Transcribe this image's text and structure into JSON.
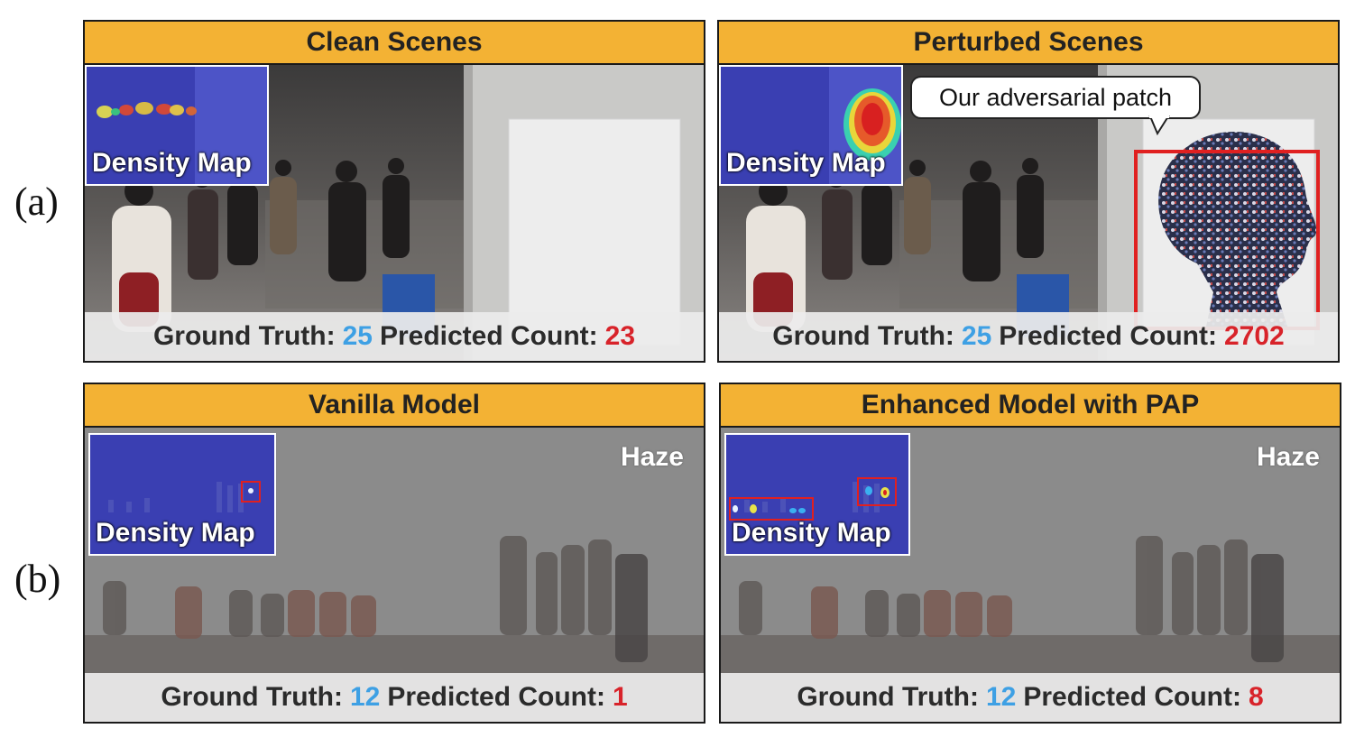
{
  "row_labels": {
    "a": "(a)",
    "b": "(b)"
  },
  "panels": {
    "clean": {
      "title": "Clean Scenes",
      "density_label": "Density Map",
      "gt_label": "Ground Truth:",
      "gt_value": "25",
      "pred_label": "Predicted Count:",
      "pred_value": "23"
    },
    "perturbed": {
      "title": "Perturbed Scenes",
      "density_label": "Density Map",
      "callout": "Our adversarial patch",
      "gt_label": "Ground Truth:",
      "gt_value": "25",
      "pred_label": "Predicted Count:",
      "pred_value": "2702"
    },
    "vanilla": {
      "title": "Vanilla Model",
      "density_label": "Density Map",
      "haze": "Haze",
      "gt_label": "Ground Truth:",
      "gt_value": "12",
      "pred_label": "Predicted Count:",
      "pred_value": "1"
    },
    "enhanced": {
      "title": "Enhanced Model with PAP",
      "density_label": "Density Map",
      "haze": "Haze",
      "gt_label": "Ground Truth:",
      "gt_value": "12",
      "pred_label": "Predicted Count:",
      "pred_value": "8"
    }
  },
  "colors": {
    "header": "#f3b234",
    "gt": "#3ea0e4",
    "pred": "#d8232a",
    "highlight_box": "#e02020",
    "density_bg": "#3a3fb2"
  }
}
